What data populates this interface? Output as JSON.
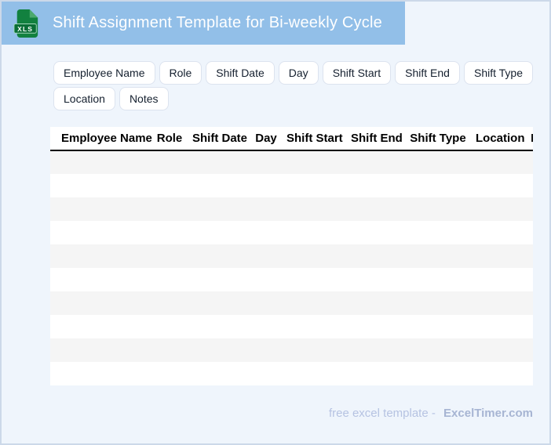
{
  "header": {
    "badge": "XLS",
    "title": "Shift Assignment Template for Bi-weekly Cycle"
  },
  "chips": [
    "Employee Name",
    "Role",
    "Shift Date",
    "Day",
    "Shift Start",
    "Shift End",
    "Shift Type",
    "Location",
    "Notes"
  ],
  "table": {
    "columns": [
      "Employee Name",
      "Role",
      "Shift Date",
      "Day",
      "Shift Start",
      "Shift End",
      "Shift Type",
      "Location",
      "Notes"
    ],
    "row_count": 10,
    "rows": []
  },
  "footer": {
    "prefix": "free excel template -",
    "brand": "ExcelTimer.com"
  },
  "colors": {
    "page_bg": "#eff5fc",
    "page_border": "#ccd9e9",
    "header_bg": "#92bfe8",
    "header_text": "#ffffff",
    "icon_green": "#12813f",
    "icon_green_light": "#4ca96e",
    "icon_green_dark": "#0a6e36",
    "icon_band_border": "#a5d8bc",
    "chip_border": "#dce3ef",
    "chip_text": "#15202f",
    "table_header_text": "#000000",
    "row_stripe": "#f5f5f5",
    "footer_text": "#b6c3e2",
    "footer_brand": "#a7b5d3"
  }
}
